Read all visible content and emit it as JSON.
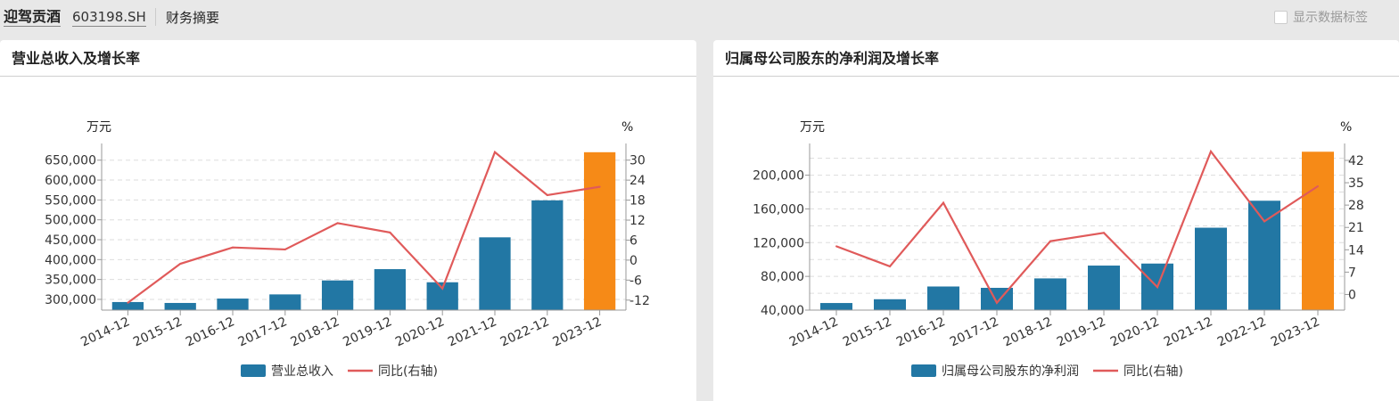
{
  "header": {
    "stock_name": "迎驾贡酒",
    "stock_code": "603198.SH",
    "section": "财务摘要",
    "show_labels_checkbox": {
      "label": "显示数据标签",
      "checked": false
    }
  },
  "colors": {
    "bar": "#2277a4",
    "bar_highlight": "#f68a17",
    "line": "#e05a5a",
    "grid": "#dddddd",
    "axis": "#999999"
  },
  "chart_data": [
    {
      "type": "bar+line",
      "title": "营业总收入及增长率",
      "ylabel": "万元",
      "y2label": "%",
      "categories": [
        "2014-12",
        "2015-12",
        "2016-12",
        "2017-12",
        "2018-12",
        "2019-12",
        "2020-12",
        "2021-12",
        "2022-12",
        "2023-12"
      ],
      "ylim": [
        273000,
        692000
      ],
      "yticks": [
        300000,
        350000,
        400000,
        450000,
        500000,
        550000,
        600000,
        650000
      ],
      "ytick_labels": [
        "300,000",
        "350,000",
        "400,000",
        "450,000",
        "500,000",
        "550,000",
        "600,000",
        "650,000"
      ],
      "y2lim": [
        -15,
        35
      ],
      "y2ticks": [
        -12,
        -6,
        0,
        6,
        12,
        18,
        24,
        30
      ],
      "y2tick_labels": [
        "-12",
        "-6",
        "0",
        "6",
        "12",
        "18",
        "24",
        "30"
      ],
      "gridlines": [
        300000,
        350000,
        400000,
        450000,
        500000,
        550000,
        600000,
        650000
      ],
      "highlight_index": 9,
      "series": [
        {
          "name": "营业总收入",
          "type": "bar",
          "axis": "left",
          "values": [
            293300,
            291000,
            302000,
            312500,
            347600,
            376000,
            343000,
            456000,
            549000,
            670000
          ]
        },
        {
          "name": "同比(右轴)",
          "type": "line",
          "axis": "right",
          "values": [
            -12.8,
            -1.1,
            3.8,
            3.2,
            11.1,
            8.3,
            -8.5,
            32.4,
            19.5,
            22.0
          ]
        }
      ],
      "legend": "bottom",
      "grid": true
    },
    {
      "type": "bar+line",
      "title": "归属母公司股东的净利润及增长率",
      "ylabel": "万元",
      "y2label": "%",
      "categories": [
        "2014-12",
        "2015-12",
        "2016-12",
        "2017-12",
        "2018-12",
        "2019-12",
        "2020-12",
        "2021-12",
        "2022-12",
        "2023-12"
      ],
      "ylim": [
        40000,
        237600
      ],
      "yticks": [
        40000,
        80000,
        120000,
        160000,
        200000
      ],
      "ytick_labels": [
        "40,000",
        "80,000",
        "120,000",
        "160,000",
        "200,000"
      ],
      "y2lim": [
        -4.9,
        47.3
      ],
      "y2ticks": [
        0,
        7,
        14,
        21,
        28,
        35,
        42
      ],
      "y2tick_labels": [
        "0",
        "7",
        "14",
        "21",
        "28",
        "35",
        "42"
      ],
      "gridlines": [
        60000,
        80000,
        100000,
        120000,
        140000,
        160000,
        180000,
        200000,
        220000
      ],
      "highlight_index": 9,
      "series": [
        {
          "name": "归属母公司股东的净利润",
          "type": "bar",
          "axis": "left",
          "values": [
            48400,
            52900,
            68000,
            66400,
            77600,
            92800,
            95200,
            137700,
            169700,
            227800
          ]
        },
        {
          "name": "同比(右轴)",
          "type": "line",
          "axis": "right",
          "values": [
            15.1,
            8.8,
            28.7,
            -2.6,
            16.7,
            19.3,
            2.3,
            44.8,
            22.9,
            33.9
          ]
        }
      ],
      "legend": "bottom",
      "grid": true
    }
  ]
}
